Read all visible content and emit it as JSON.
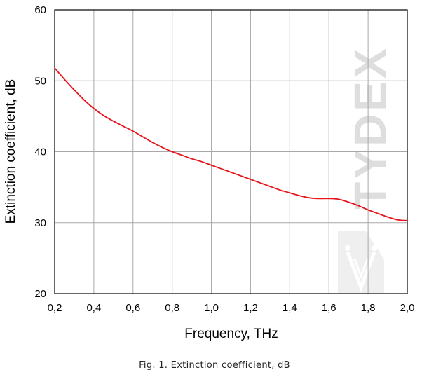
{
  "chart_data": {
    "type": "line",
    "xlabel": "Frequency, THz",
    "ylabel": "Extinction coefficient, dB",
    "xlim": [
      0.2,
      2.0
    ],
    "ylim": [
      20,
      60
    ],
    "xticks": [
      0.2,
      0.4,
      0.6,
      0.8,
      1.0,
      1.2,
      1.4,
      1.6,
      1.8,
      2.0
    ],
    "xtick_labels": [
      "0,2",
      "0,4",
      "0,6",
      "0,8",
      "1,0",
      "1,2",
      "1,4",
      "1,6",
      "1,8",
      "2,0"
    ],
    "yticks": [
      20,
      30,
      40,
      50,
      60
    ],
    "ytick_labels": [
      "20",
      "30",
      "40",
      "50",
      "60"
    ],
    "grid": true,
    "series": [
      {
        "color": "#e8141c",
        "x": [
          0.2,
          0.25,
          0.3,
          0.35,
          0.4,
          0.45,
          0.5,
          0.55,
          0.6,
          0.65,
          0.7,
          0.75,
          0.8,
          0.85,
          0.9,
          0.95,
          1.0,
          1.05,
          1.1,
          1.15,
          1.2,
          1.25,
          1.3,
          1.35,
          1.4,
          1.45,
          1.5,
          1.55,
          1.6,
          1.65,
          1.7,
          1.75,
          1.8,
          1.85,
          1.9,
          1.95,
          2.0
        ],
        "y": [
          51.8,
          50.2,
          48.7,
          47.3,
          46.1,
          45.1,
          44.3,
          43.6,
          42.9,
          42.1,
          41.3,
          40.6,
          40.0,
          39.5,
          39.0,
          38.6,
          38.1,
          37.6,
          37.1,
          36.6,
          36.1,
          35.6,
          35.1,
          34.6,
          34.2,
          33.8,
          33.5,
          33.4,
          33.4,
          33.3,
          32.9,
          32.4,
          31.8,
          31.3,
          30.8,
          30.4,
          30.3
        ]
      }
    ]
  },
  "watermark": "TYDEX",
  "caption": "Fig. 1. Extinction coefficient, dB"
}
